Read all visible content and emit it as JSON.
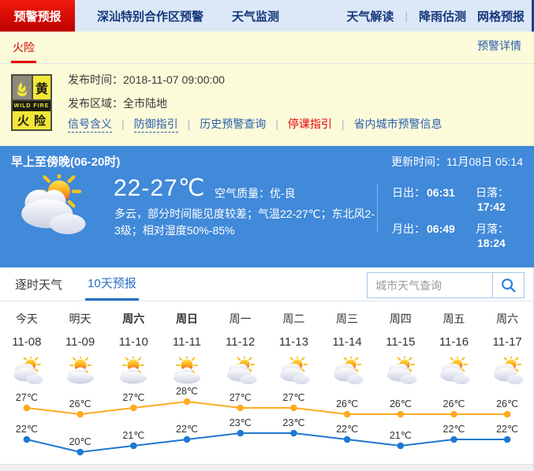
{
  "nav": {
    "active_tab": "预警预报",
    "tabs": [
      "深汕特别合作区预警",
      "天气监测"
    ],
    "right_links": [
      {
        "label": "天气解读",
        "sep_after": true
      },
      {
        "label": "降雨估测",
        "sep_after": false
      },
      {
        "label": "网格预报",
        "sep_after": false
      }
    ]
  },
  "warning": {
    "tab": "火险",
    "detail_link": "预警详情",
    "icon": {
      "level": "黄",
      "type_en": "WILD FIRE",
      "type_cn": "火险"
    },
    "publish_time_label": "发布时间：",
    "publish_time": "2018-11-07 09:00:00",
    "area_label": "发布区域：",
    "area": "全市陆地",
    "links": [
      {
        "label": "信号含义",
        "style": "blue-dashed"
      },
      {
        "label": "防御指引",
        "style": "blue-dashed"
      },
      {
        "label": "历史预警查询",
        "style": "blue"
      },
      {
        "label": "停课指引",
        "style": "red"
      },
      {
        "label": "省内城市预警信息",
        "style": "blue"
      }
    ]
  },
  "current": {
    "period": "早上至傍晚(06-20时)",
    "update_label": "更新时间：",
    "update_time": "11月08日 05:14",
    "temp_range": "22-27℃",
    "air_label": "空气质量：",
    "air_quality": "优-良",
    "description": "多云，部分时间能见度较差；气温22-27℃；东北风2-3级；相对湿度50%-85%",
    "sun_moon": [
      {
        "label": "日出：",
        "value": "06:31"
      },
      {
        "label": "日落：",
        "value": "17:42"
      },
      {
        "label": "月出：",
        "value": "06:49"
      },
      {
        "label": "月落：",
        "value": "18:24"
      }
    ]
  },
  "forecast": {
    "tabs": [
      {
        "label": "逐时天气",
        "active": false
      },
      {
        "label": "10天预报",
        "active": true
      }
    ],
    "search_placeholder": "城市天气查询",
    "days": [
      {
        "name": "今天",
        "date": "11-08",
        "bold": false,
        "icon": "cloudy"
      },
      {
        "name": "明天",
        "date": "11-09",
        "bold": false,
        "icon": "partly-sunny"
      },
      {
        "name": "周六",
        "date": "11-10",
        "bold": true,
        "icon": "partly-sunny"
      },
      {
        "name": "周日",
        "date": "11-11",
        "bold": true,
        "icon": "partly-sunny"
      },
      {
        "name": "周一",
        "date": "11-12",
        "bold": false,
        "icon": "cloudy"
      },
      {
        "name": "周二",
        "date": "11-13",
        "bold": false,
        "icon": "cloudy"
      },
      {
        "name": "周三",
        "date": "11-14",
        "bold": false,
        "icon": "cloudy"
      },
      {
        "name": "周四",
        "date": "11-15",
        "bold": false,
        "icon": "cloudy"
      },
      {
        "name": "周五",
        "date": "11-16",
        "bold": false,
        "icon": "cloudy"
      },
      {
        "name": "周六",
        "date": "11-17",
        "bold": false,
        "icon": "cloudy"
      }
    ]
  },
  "chart_data": {
    "type": "line",
    "categories": [
      "11-08",
      "11-09",
      "11-10",
      "11-11",
      "11-12",
      "11-13",
      "11-14",
      "11-15",
      "11-16",
      "11-17"
    ],
    "series": [
      {
        "name": "high",
        "color": "#ffaa21",
        "values": [
          27,
          26,
          27,
          28,
          27,
          27,
          26,
          26,
          26,
          26
        ]
      },
      {
        "name": "low",
        "color": "#1f78d1",
        "values": [
          22,
          20,
          21,
          22,
          23,
          23,
          22,
          21,
          22,
          22
        ]
      }
    ],
    "unit": "℃",
    "ylim": [
      20,
      28
    ],
    "grid": false,
    "legend": "none",
    "label_color": "#333333"
  },
  "colors": {
    "nav_bg": "#dce8f7",
    "nav_text": "#16387c",
    "alert_red": "#d40000",
    "warn_bg": "#fcfbd9",
    "panel_blue": "#4189d9",
    "accent_blue": "#2a6fc7",
    "high_line": "#ffaa21",
    "low_line": "#1f78d1"
  }
}
